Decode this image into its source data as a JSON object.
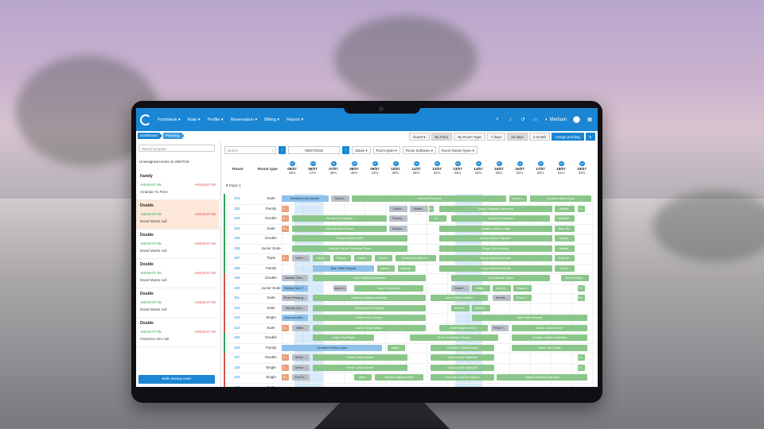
{
  "nav": {
    "items": [
      "Frontdesk ▾",
      "Rate ▾",
      "Profile ▾",
      "Reservation ▾",
      "Billing ▾",
      "Report ▾"
    ],
    "user": "Medium"
  },
  "breadcrumb": [
    "Dashboard",
    "Planning"
  ],
  "sidebar": {
    "search_placeholder": "Search by guest...",
    "unassigned_title": "Unassigned rooms on 05/07/19",
    "cards": [
      {
        "type": "Family",
        "from": "2019-07-05",
        "to": "2019-07-06",
        "guest": "Amanda Yü Price"
      },
      {
        "type": "Double",
        "from": "2019-07-05",
        "to": "2019-07-06",
        "guest": "David Martin null"
      },
      {
        "type": "Double",
        "from": "2019-07-05",
        "to": "2019-07-06",
        "guest": "David Martin null"
      },
      {
        "type": "Double",
        "from": "2019-07-05",
        "to": "2019-07-06",
        "guest": "David Martin null"
      },
      {
        "type": "Double",
        "from": "2019-07-05",
        "to": "2019-07-06",
        "guest": "David Martin null"
      },
      {
        "type": "Double",
        "from": "2019-07-05",
        "to": "2019-07-06",
        "guest": "Francisco Ors null"
      }
    ],
    "bulk_label": "Bulk assing room"
  },
  "toolbar": {
    "guest": "Guest ▾",
    "by_floor": "By Floor",
    "by_room_type": "By Room Type",
    "d7": "7 days",
    "d15": "15 days",
    "m1": "1 month",
    "assign": "Assign pending"
  },
  "filters": {
    "search_placeholder": "search",
    "date": "05/07/2019",
    "status": "Status ▾",
    "room_types": "Room types ▾",
    "room_subtypes": "Room Subtypes ▾",
    "room_features": "Room feature types ▾"
  },
  "grid": {
    "room_header": "Room",
    "type_header": "Room type",
    "floor": "▾ Floor 1",
    "days": [
      {
        "count": "19",
        "date": "05/07",
        "pct": "43%"
      },
      {
        "count": "13",
        "date": "06/07",
        "pct": "27%"
      },
      {
        "count": "16",
        "date": "07/07",
        "pct": "35%"
      },
      {
        "count": "18",
        "date": "08/07",
        "pct": "40%"
      },
      {
        "count": "19",
        "date": "09/07",
        "pct": "43%"
      },
      {
        "count": "17",
        "date": "10/07",
        "pct": "38%"
      },
      {
        "count": "16",
        "date": "11/07",
        "pct": "36%"
      },
      {
        "count": "15",
        "date": "12/07",
        "pct": "34%"
      },
      {
        "count": "15",
        "date": "13/07",
        "pct": "33%"
      },
      {
        "count": "15",
        "date": "14/07",
        "pct": "34%"
      },
      {
        "count": "15",
        "date": "15/07",
        "pct": "33%"
      },
      {
        "count": "14",
        "date": "16/07",
        "pct": "32%"
      },
      {
        "count": "14",
        "date": "17/07",
        "pct": "32%"
      },
      {
        "count": "14",
        "date": "18/07",
        "pct": "31%"
      },
      {
        "count": "14",
        "date": "19/07",
        "pct": "32%"
      }
    ],
    "rooms": [
      {
        "num": "101",
        "type": "Suite",
        "flag": "#2aa55a"
      },
      {
        "num": "102",
        "type": "Family",
        "flag": "#2aa55a"
      },
      {
        "num": "103",
        "type": "Double",
        "flag": "#2aa55a"
      },
      {
        "num": "104",
        "type": "Suite",
        "flag": "#2aa55a"
      },
      {
        "num": "105",
        "type": "Double",
        "flag": "#2aa55a"
      },
      {
        "num": "106",
        "type": "Junior Suite",
        "flag": "#2aa55a"
      },
      {
        "num": "107",
        "type": "Triple",
        "flag": "#2aa55a"
      },
      {
        "num": "108",
        "type": "Family",
        "flag": "#2aa55a"
      },
      {
        "num": "109",
        "type": "Double",
        "flag": "#d9534f"
      },
      {
        "num": "110",
        "type": "Junior Suite",
        "flag": "#d9534f"
      },
      {
        "num": "111",
        "type": "Suite",
        "flag": "#d9534f"
      },
      {
        "num": "112",
        "type": "Suite",
        "flag": "#d9534f"
      },
      {
        "num": "113",
        "type": "Single",
        "flag": "#d9534f"
      },
      {
        "num": "114",
        "type": "Suite",
        "flag": "#d9534f"
      },
      {
        "num": "115",
        "type": "Double",
        "flag": "#2aa55a"
      },
      {
        "num": "116",
        "type": "Family",
        "flag": "#2aa55a"
      },
      {
        "num": "117",
        "type": "Double",
        "flag": "#d9534f"
      },
      {
        "num": "118",
        "type": "Single",
        "flag": "#d9534f"
      },
      {
        "num": "119",
        "type": "Single",
        "flag": "#d9534f"
      },
      {
        "num": "120",
        "type": "Suite",
        "flag": "#d9534f"
      }
    ],
    "bookings": [
      {
        "row": 0,
        "start": 0,
        "span": 2.3,
        "kind": "b",
        "label": "Kimberly Lila Weaver"
      },
      {
        "row": 0,
        "start": 2.4,
        "span": 0.9,
        "kind": "gr",
        "label": "Daniel..."
      },
      {
        "row": 0,
        "start": 3.4,
        "span": 7.5,
        "kind": "g",
        "label": "Johnny Fit Garcia"
      },
      {
        "row": 0,
        "start": 11,
        "span": 0.9,
        "kind": "g",
        "label": "Kevin L..."
      },
      {
        "row": 0,
        "start": 12,
        "span": 3,
        "kind": "g",
        "label": "Cynthia Liliana Cook"
      },
      {
        "row": 1,
        "start": 0,
        "span": 0.4,
        "kind": "o",
        "label": "K..."
      },
      {
        "row": 1,
        "start": 5.2,
        "span": 0.9,
        "kind": "gr",
        "label": "David..."
      },
      {
        "row": 1,
        "start": 6.2,
        "span": 0.9,
        "kind": "gr",
        "label": "Jonath..."
      },
      {
        "row": 1,
        "start": 7.1,
        "span": 0.3,
        "kind": "g",
        "label": "R..."
      },
      {
        "row": 1,
        "start": 7.6,
        "span": 5.5,
        "kind": "g",
        "label": "Kathy Cléopatre Laurence"
      },
      {
        "row": 1,
        "start": 13.2,
        "span": 1,
        "kind": "g",
        "label": "Jeffery..."
      },
      {
        "row": 1,
        "start": 14.3,
        "span": 0.4,
        "kind": "g",
        "label": "El..."
      },
      {
        "row": 2,
        "start": 0,
        "span": 0.4,
        "kind": "o",
        "label": "K..."
      },
      {
        "row": 2,
        "start": 0.5,
        "span": 4.6,
        "kind": "g",
        "label": "Gerald Lei Simpson"
      },
      {
        "row": 2,
        "start": 5.2,
        "span": 0.9,
        "kind": "gr",
        "label": "Tammy..."
      },
      {
        "row": 2,
        "start": 7.1,
        "span": 0.9,
        "kind": "g",
        "label": "M..."
      },
      {
        "row": 2,
        "start": 8.2,
        "span": 4.8,
        "kind": "g",
        "label": "Donald To Alvarez"
      },
      {
        "row": 2,
        "start": 13.2,
        "span": 1,
        "kind": "g",
        "label": "Andrew..."
      },
      {
        "row": 3,
        "start": 0,
        "span": 0.4,
        "kind": "o",
        "label": "R..."
      },
      {
        "row": 3,
        "start": 0.5,
        "span": 4.6,
        "kind": "g",
        "label": "Julia Zenobie Evans"
      },
      {
        "row": 3,
        "start": 5.2,
        "span": 0.9,
        "kind": "gr",
        "label": "Marilyn..."
      },
      {
        "row": 3,
        "start": 7.6,
        "span": 5.5,
        "kind": "g",
        "label": "Antonio Celine Long"
      },
      {
        "row": 3,
        "start": 13.2,
        "span": 1,
        "kind": "g",
        "label": "Jean Zh..."
      },
      {
        "row": 4,
        "start": 0.5,
        "span": 5.6,
        "kind": "g",
        "label": "Evelyn Andrés Ellis"
      },
      {
        "row": 4,
        "start": 7.6,
        "span": 5.5,
        "kind": "g",
        "label": "Nancy Gaston Nguyen"
      },
      {
        "row": 4,
        "start": 13.2,
        "span": 1,
        "kind": "g",
        "label": "Gregor..."
      },
      {
        "row": 5,
        "start": 0.5,
        "span": 5.6,
        "kind": "g",
        "label": "Carolyn Marie-Françoise Shaw"
      },
      {
        "row": 5,
        "start": 7.6,
        "span": 5.5,
        "kind": "g",
        "label": "Roger Zhi Kennedy"
      },
      {
        "row": 5,
        "start": 13.2,
        "span": 1,
        "kind": "g",
        "label": "Nicole..."
      },
      {
        "row": 6,
        "start": 0,
        "span": 0.4,
        "kind": "o",
        "label": "K..."
      },
      {
        "row": 6,
        "start": 0.5,
        "span": 0.9,
        "kind": "gr",
        "label": "Victor ..."
      },
      {
        "row": 6,
        "start": 1.5,
        "span": 0.9,
        "kind": "g",
        "label": "Sarah..."
      },
      {
        "row": 6,
        "start": 2.5,
        "span": 0.9,
        "kind": "g",
        "label": "Randy..."
      },
      {
        "row": 6,
        "start": 3.5,
        "span": 0.9,
        "kind": "g",
        "label": "Kathe..."
      },
      {
        "row": 6,
        "start": 4.5,
        "span": 0.9,
        "kind": "g",
        "label": "Cynth..."
      },
      {
        "row": 6,
        "start": 5.5,
        "span": 2,
        "kind": "g",
        "label": "Kimberly Crédo Cu..."
      },
      {
        "row": 6,
        "start": 7.6,
        "span": 5.5,
        "kind": "g",
        "label": "Harold Salomé Woods"
      },
      {
        "row": 6,
        "start": 13.2,
        "span": 1,
        "kind": "g",
        "label": "Keith M..."
      },
      {
        "row": 7,
        "start": 1.5,
        "span": 3,
        "kind": "b",
        "label": "Alan Milla Howard"
      },
      {
        "row": 7,
        "start": 4.6,
        "span": 0.9,
        "kind": "g",
        "label": "Nancy..."
      },
      {
        "row": 7,
        "start": 5.6,
        "span": 0.9,
        "kind": "g",
        "label": "Virginia..."
      },
      {
        "row": 7,
        "start": 7.6,
        "span": 5.5,
        "kind": "g",
        "label": "Laura Séverine Scott"
      },
      {
        "row": 7,
        "start": 13.2,
        "span": 1,
        "kind": "g",
        "label": "Chris..."
      },
      {
        "row": 8,
        "start": 0,
        "span": 1.3,
        "kind": "gr",
        "label": "Martha Ther..."
      },
      {
        "row": 8,
        "start": 1.5,
        "span": 5.5,
        "kind": "g",
        "label": "Jason Melinda Martinez"
      },
      {
        "row": 8,
        "start": 8.2,
        "span": 4.8,
        "kind": "g",
        "label": "Eric Mandle Taylor"
      },
      {
        "row": 8,
        "start": 13.5,
        "span": 1.4,
        "kind": "g",
        "label": "Annie Mélyz..."
      },
      {
        "row": 9,
        "start": 0,
        "span": 1.3,
        "kind": "b",
        "label": "Shirley Ran P..."
      },
      {
        "row": 9,
        "start": 2.5,
        "span": 0.7,
        "kind": "gr",
        "label": "Jane Ki..."
      },
      {
        "row": 9,
        "start": 3.5,
        "span": 3.4,
        "kind": "g",
        "label": "Juan Chloé Allen"
      },
      {
        "row": 9,
        "start": 8.2,
        "span": 0.9,
        "kind": "gr",
        "label": "Martin..."
      },
      {
        "row": 9,
        "start": 9.2,
        "span": 0.9,
        "kind": "g",
        "label": "Ralph..."
      },
      {
        "row": 9,
        "start": 10.2,
        "span": 0.9,
        "kind": "g",
        "label": "Amy M..."
      },
      {
        "row": 9,
        "start": 11.2,
        "span": 0.9,
        "kind": "g",
        "label": "Jessica..."
      },
      {
        "row": 9,
        "start": 14.3,
        "span": 0.4,
        "kind": "g",
        "label": "Ti..."
      },
      {
        "row": 10,
        "start": 0,
        "span": 1.3,
        "kind": "gr",
        "label": "Rose Edwang..."
      },
      {
        "row": 10,
        "start": 1.5,
        "span": 5.5,
        "kind": "g",
        "label": "Kathleen Madina Martinez"
      },
      {
        "row": 10,
        "start": 7.2,
        "span": 2.8,
        "kind": "g",
        "label": "Jerry Fellea Castillo"
      },
      {
        "row": 10,
        "start": 10.2,
        "span": 0.9,
        "kind": "gr",
        "label": "Dennis..."
      },
      {
        "row": 10,
        "start": 11.2,
        "span": 0.9,
        "kind": "g",
        "label": "Terry K..."
      },
      {
        "row": 10,
        "start": 14.3,
        "span": 0.4,
        "kind": "g",
        "label": "Rb..."
      },
      {
        "row": 11,
        "start": 0,
        "span": 1.3,
        "kind": "gr",
        "label": "Tammy Quo..."
      },
      {
        "row": 11,
        "start": 1.5,
        "span": 5.5,
        "kind": "g",
        "label": "Diana Aimée Daniels"
      },
      {
        "row": 11,
        "start": 8.2,
        "span": 0.9,
        "kind": "g",
        "label": "Earl Hi..."
      },
      {
        "row": 11,
        "start": 9.2,
        "span": 0.9,
        "kind": "g",
        "label": "Mildred..."
      },
      {
        "row": 12,
        "start": 0,
        "span": 1.3,
        "kind": "b",
        "label": "Jean Annette..."
      },
      {
        "row": 12,
        "start": 1.5,
        "span": 5.5,
        "kind": "g",
        "label": "Robert Inès Cooper"
      },
      {
        "row": 12,
        "start": 9.2,
        "span": 5.6,
        "kind": "g",
        "label": "Alan Milla Howard"
      },
      {
        "row": 13,
        "start": 0,
        "span": 0.4,
        "kind": "o",
        "label": "N..."
      },
      {
        "row": 13,
        "start": 0.5,
        "span": 0.9,
        "kind": "gr",
        "label": "Willie..."
      },
      {
        "row": 13,
        "start": 1.5,
        "span": 5.5,
        "kind": "g",
        "label": "Sarah Táng Walker"
      },
      {
        "row": 13,
        "start": 7.6,
        "span": 2.4,
        "kind": "g",
        "label": "Keith Maurice Cruz"
      },
      {
        "row": 13,
        "start": 10.1,
        "span": 0.9,
        "kind": "gr",
        "label": "Philip E..."
      },
      {
        "row": 13,
        "start": 11.1,
        "span": 3.7,
        "kind": "g",
        "label": "Sarah Liane Dixon"
      },
      {
        "row": 14,
        "start": 1.5,
        "span": 3,
        "kind": "g",
        "label": "Craig Yéu Meyer"
      },
      {
        "row": 14,
        "start": 6.2,
        "span": 4.3,
        "kind": "g",
        "label": "Chris Frédérique Harper"
      },
      {
        "row": 14,
        "start": 11.1,
        "span": 3.7,
        "kind": "g",
        "label": "George Gaétane Medina"
      },
      {
        "row": 15,
        "start": 0,
        "span": 4.9,
        "kind": "b",
        "label": "Christine Neha Lopez"
      },
      {
        "row": 15,
        "start": 5.1,
        "span": 0.9,
        "kind": "g",
        "label": "Mary..."
      },
      {
        "row": 15,
        "start": 7.2,
        "span": 3.1,
        "kind": "g",
        "label": "Christine Liliana Kelley"
      },
      {
        "row": 15,
        "start": 11.1,
        "span": 3.7,
        "kind": "g",
        "label": "Diane Yao Lewis"
      },
      {
        "row": 16,
        "start": 0,
        "span": 0.4,
        "kind": "o",
        "label": "K..."
      },
      {
        "row": 16,
        "start": 0.5,
        "span": 0.9,
        "kind": "gr",
        "label": "Arthur ..."
      },
      {
        "row": 16,
        "start": 1.5,
        "span": 4.6,
        "kind": "g",
        "label": "Robin Crédo Morris"
      },
      {
        "row": 16,
        "start": 7.2,
        "span": 3.1,
        "kind": "g",
        "label": "Kelly Léonie Marshall"
      },
      {
        "row": 16,
        "start": 14.3,
        "span": 0.4,
        "kind": "g",
        "label": "El..."
      },
      {
        "row": 17,
        "start": 0,
        "span": 0.4,
        "kind": "o",
        "label": "K..."
      },
      {
        "row": 17,
        "start": 0.5,
        "span": 0.9,
        "kind": "gr",
        "label": "Arthur ..."
      },
      {
        "row": 17,
        "start": 1.5,
        "span": 4.6,
        "kind": "g",
        "label": "Robin Crédo Morris"
      },
      {
        "row": 17,
        "start": 7.2,
        "span": 3.1,
        "kind": "g",
        "label": "Kelly Léonie Marshall"
      },
      {
        "row": 17,
        "start": 14.3,
        "span": 0.4,
        "kind": "g",
        "label": "El..."
      },
      {
        "row": 18,
        "start": 0,
        "span": 0.4,
        "kind": "o",
        "label": "K..."
      },
      {
        "row": 18,
        "start": 0.5,
        "span": 0.9,
        "kind": "gr",
        "label": "Earl Ei..."
      },
      {
        "row": 18,
        "start": 3.5,
        "span": 0.9,
        "kind": "g",
        "label": "Vane..."
      },
      {
        "row": 18,
        "start": 4.5,
        "span": 2.4,
        "kind": "g",
        "label": "Richard Mijane Wells"
      },
      {
        "row": 18,
        "start": 7.2,
        "span": 3.1,
        "kind": "g",
        "label": "Deborah Lina Fernandez"
      },
      {
        "row": 18,
        "start": 10.4,
        "span": 4.4,
        "kind": "g",
        "label": "Virginia Madline Martinez"
      }
    ]
  }
}
